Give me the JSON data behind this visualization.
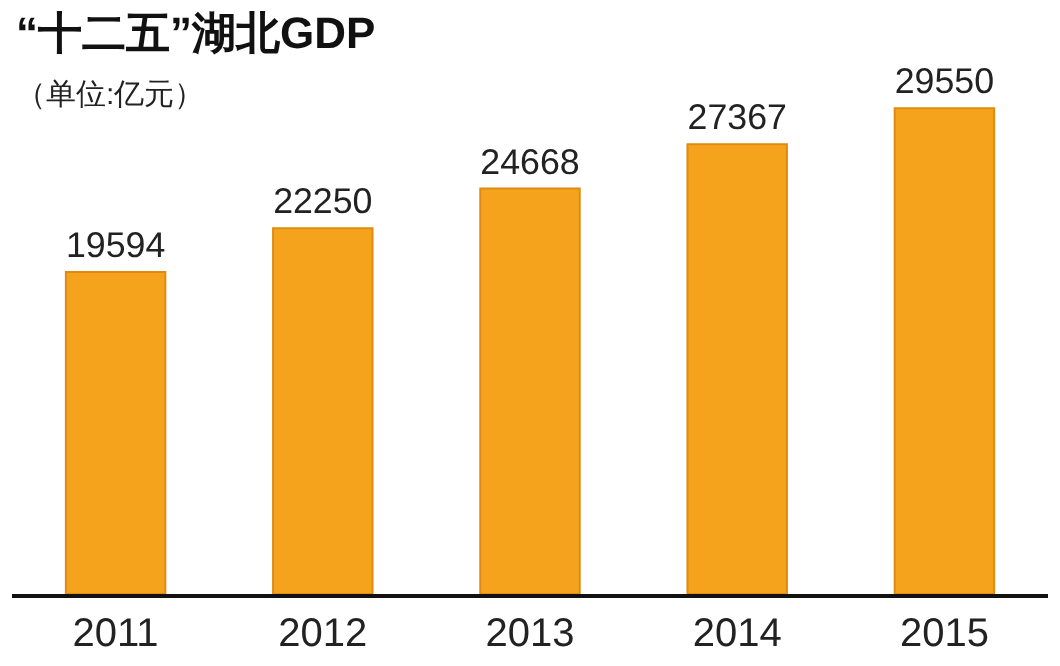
{
  "chart_data": {
    "type": "bar",
    "title": "“十二五”湖北GDP",
    "subtitle": "（单位:亿元）",
    "categories": [
      "2011",
      "2012",
      "2013",
      "2014",
      "2015"
    ],
    "values": [
      19594,
      22250,
      24668,
      27367,
      29550
    ],
    "color": "#f5a31c",
    "data_labels": true,
    "legend": false
  }
}
